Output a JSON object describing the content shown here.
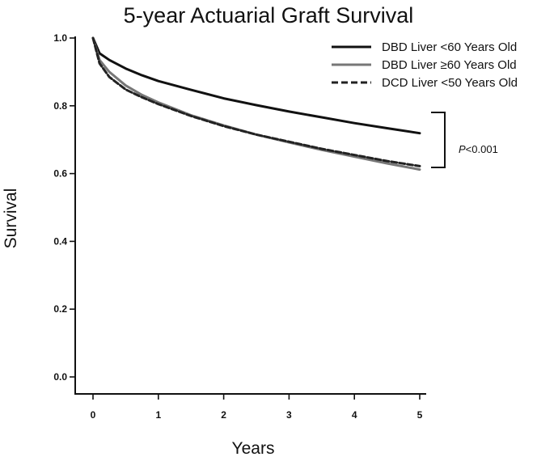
{
  "chart_data": {
    "type": "line",
    "title": "5-year Actuarial Graft Survival",
    "xlabel": "Years",
    "ylabel": "Survival",
    "xlim": [
      0,
      5
    ],
    "ylim": [
      0,
      1.0
    ],
    "x_ticks": [
      "0",
      "1",
      "2",
      "3",
      "4",
      "5"
    ],
    "y_ticks": [
      "0.0",
      "0.2",
      "0.4",
      "0.6",
      "0.8",
      "1.0"
    ],
    "grid": false,
    "legend_position": "top-right",
    "series": [
      {
        "name": "DBD Liver <60 Years Old",
        "color": "#111111",
        "style": "solid",
        "x": [
          0,
          0.1,
          0.25,
          0.5,
          0.75,
          1,
          1.5,
          2,
          2.5,
          3,
          3.5,
          4,
          4.5,
          5
        ],
        "y": [
          1.0,
          0.955,
          0.935,
          0.91,
          0.89,
          0.873,
          0.847,
          0.822,
          0.802,
          0.783,
          0.766,
          0.749,
          0.734,
          0.719
        ]
      },
      {
        "name": "DBD Liver ≥60 Years Old",
        "color": "#777777",
        "style": "solid",
        "x": [
          0,
          0.1,
          0.25,
          0.5,
          0.75,
          1,
          1.5,
          2,
          2.5,
          3,
          3.5,
          4,
          4.5,
          5
        ],
        "y": [
          1.0,
          0.935,
          0.9,
          0.86,
          0.832,
          0.81,
          0.772,
          0.742,
          0.715,
          0.692,
          0.67,
          0.65,
          0.63,
          0.612
        ]
      },
      {
        "name": "DCD Liver <50 Years Old",
        "color": "#222222",
        "style": "dashed",
        "x": [
          0,
          0.1,
          0.25,
          0.5,
          0.75,
          1,
          1.5,
          2,
          2.5,
          3,
          3.5,
          4,
          4.5,
          5
        ],
        "y": [
          1.0,
          0.925,
          0.885,
          0.848,
          0.825,
          0.805,
          0.77,
          0.74,
          0.715,
          0.694,
          0.673,
          0.655,
          0.637,
          0.622
        ]
      }
    ],
    "annotation": {
      "text": "P<0.001",
      "italic_part": "P",
      "rest": "<0.001"
    }
  }
}
